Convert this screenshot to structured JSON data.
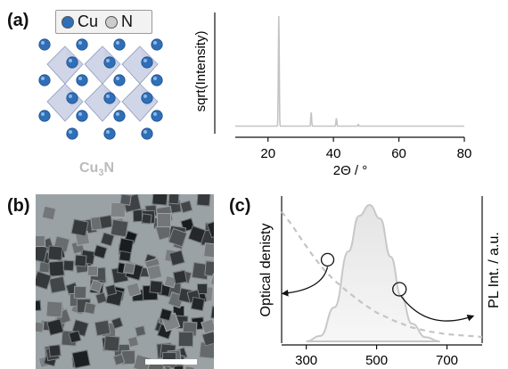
{
  "panels": {
    "a": "(a)",
    "b": "(b)",
    "c": "(c)"
  },
  "legend": {
    "items": [
      {
        "label": "Cu",
        "color": "#2f6fb8"
      },
      {
        "label": "N",
        "color": "#cccccc"
      }
    ]
  },
  "formula": {
    "main": "Cu",
    "sub": "3",
    "end": "N"
  },
  "colors": {
    "cu_atom": "#2f6fb8",
    "octahedron": "#aab5d6",
    "curve": "#c4c4c4",
    "pl_fill": "#e6e6e6"
  },
  "chart_data": [
    {
      "type": "line",
      "name": "xrd",
      "xlabel": "2Θ / °",
      "ylabel": "sqrt(Intensity)",
      "xlim": [
        10,
        80
      ],
      "ylim": [
        0,
        1
      ],
      "xticks": [
        20,
        40,
        60,
        80
      ],
      "peaks": [
        {
          "x": 23.3,
          "y": 1.0
        },
        {
          "x": 33.2,
          "y": 0.12
        },
        {
          "x": 40.9,
          "y": 0.07
        },
        {
          "x": 47.6,
          "y": 0.015
        }
      ],
      "baseline": 0.035,
      "grid": false
    },
    {
      "type": "line",
      "name": "absorption-pl",
      "xlabel": "",
      "ylabel_left": "Optical denisty",
      "ylabel_right": "PL Int. / a.u.",
      "xlim": [
        230,
        800
      ],
      "xticks": [
        300,
        500,
        700
      ],
      "series": [
        {
          "style": "dashed",
          "x": [
            230,
            260,
            290,
            320,
            350,
            380,
            420,
            460,
            500,
            550,
            600,
            650,
            700,
            750,
            800
          ],
          "y": [
            0.95,
            0.85,
            0.73,
            0.62,
            0.52,
            0.44,
            0.35,
            0.27,
            0.2,
            0.14,
            0.09,
            0.06,
            0.04,
            0.03,
            0.02
          ]
        },
        {
          "style": "filled",
          "x": [
            300,
            340,
            380,
            420,
            450,
            480,
            510,
            540,
            570,
            600,
            640,
            680
          ],
          "y": [
            0.0,
            0.04,
            0.25,
            0.66,
            0.92,
            1.0,
            0.9,
            0.62,
            0.33,
            0.13,
            0.03,
            0.0
          ]
        }
      ],
      "grid": false
    }
  ]
}
